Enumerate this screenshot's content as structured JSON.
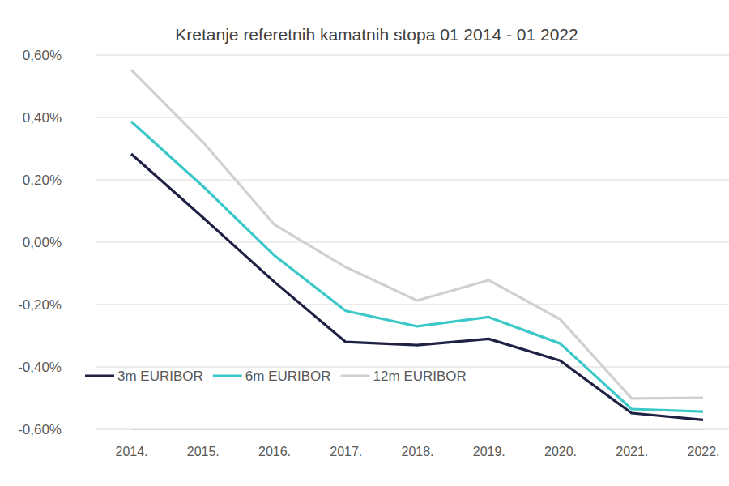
{
  "chart_data": {
    "type": "line",
    "title": "Kretanje referetnih kamatnih stopa 01 2014 - 01 2022",
    "categories": [
      "2014.",
      "2015.",
      "2016.",
      "2017.",
      "2018.",
      "2019.",
      "2020.",
      "2021.",
      "2022."
    ],
    "series": [
      {
        "name": "3m EURIBOR",
        "color": "#1f2144",
        "values": [
          0.283,
          0.08,
          -0.127,
          -0.32,
          -0.33,
          -0.31,
          -0.38,
          -0.548,
          -0.57
        ]
      },
      {
        "name": "6m EURIBOR",
        "color": "#3cc8c8",
        "values": [
          0.387,
          0.18,
          -0.042,
          -0.22,
          -0.27,
          -0.24,
          -0.325,
          -0.535,
          -0.543
        ]
      },
      {
        "name": "12m EURIBOR",
        "color": "#d0d0d0",
        "values": [
          0.553,
          0.322,
          0.057,
          -0.08,
          -0.187,
          -0.122,
          -0.247,
          -0.501,
          -0.499
        ]
      }
    ],
    "ylim": [
      -0.6,
      0.6
    ],
    "yticks": [
      {
        "value": -0.6,
        "label": "-0,60%"
      },
      {
        "value": -0.4,
        "label": "-0,40%"
      },
      {
        "value": -0.2,
        "label": "-0,20%"
      },
      {
        "value": 0,
        "label": "0,00%"
      },
      {
        "value": 0.2,
        "label": "0,20%"
      },
      {
        "value": 0.4,
        "label": "0,40%"
      },
      {
        "value": 0.6,
        "label": "0,60%"
      }
    ],
    "grid": true,
    "legend": "lower left"
  }
}
